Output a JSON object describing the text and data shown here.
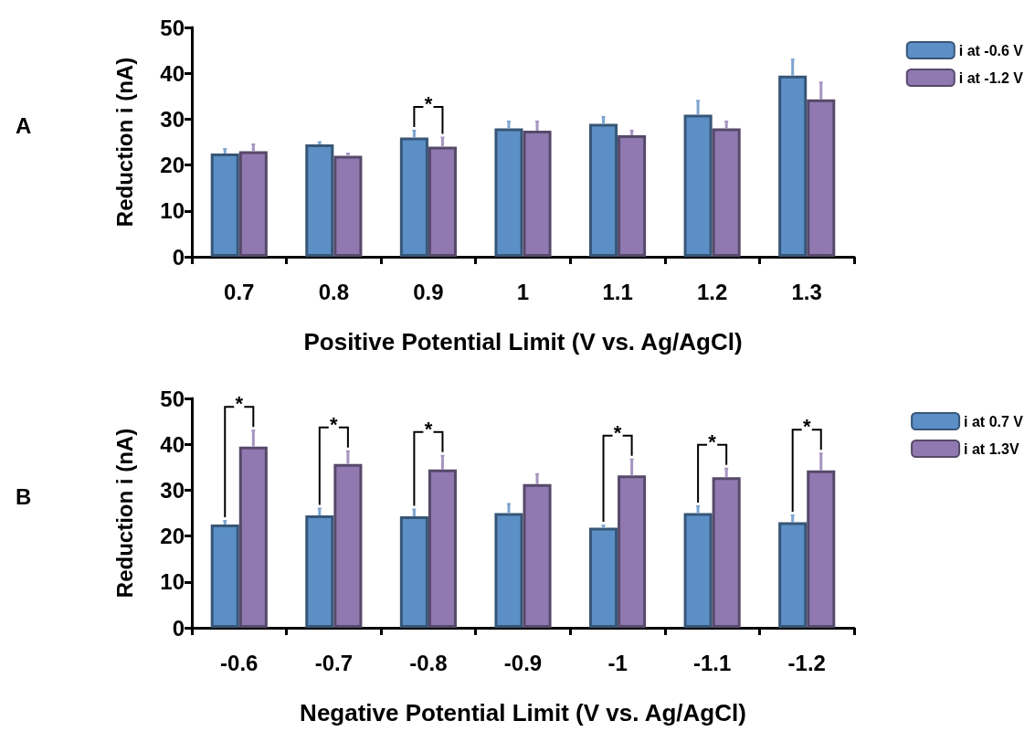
{
  "chart_data": [
    {
      "type": "bar",
      "title": "A",
      "xlabel": "Positive Potential Limit (V vs. Ag/AgCl)",
      "ylabel": "Reduction i (nA)",
      "categories": [
        "0.7",
        "0.8",
        "0.9",
        "1",
        "1.1",
        "1.2",
        "1.3"
      ],
      "series": [
        {
          "name": "i at -0.6 V",
          "color": "#5b8fc6",
          "values": [
            22.5,
            24.5,
            26,
            28,
            29,
            31,
            39.5
          ],
          "errors": [
            [
              22.5,
              23.5
            ],
            [
              24.5,
              25
            ],
            [
              26,
              27.5
            ],
            [
              28,
              29.5
            ],
            [
              29,
              30.5
            ],
            [
              31,
              34
            ],
            [
              39.5,
              43
            ]
          ]
        },
        {
          "name": "i at -1.2 V",
          "color": "#9079b0",
          "values": [
            23,
            22,
            24,
            27.5,
            26.5,
            28,
            34.3
          ],
          "errors": [
            [
              23,
              24.5
            ],
            [
              22,
              22.5
            ],
            [
              24,
              26
            ],
            [
              27.5,
              29.5
            ],
            [
              26.5,
              27.5
            ],
            [
              28,
              29.5
            ],
            [
              34.3,
              38
            ]
          ]
        }
      ],
      "annotations": [
        {
          "text": "*",
          "x": "0.9",
          "y": 26
        }
      ],
      "ylim": [
        0,
        50
      ],
      "yticks": [
        0,
        10,
        20,
        30,
        40,
        50
      ],
      "grid": false,
      "legend": "right"
    },
    {
      "type": "bar",
      "title": "B",
      "xlabel": "Negative Potential Limit (V vs. Ag/AgCl)",
      "ylabel": "Reduction i (nA)",
      "categories": [
        "-0.6",
        "-0.7",
        "-0.8",
        "-0.9",
        "-1",
        "-1.1",
        "-1.2"
      ],
      "series": [
        {
          "name": "i at 0.7 V",
          "color": "#5b8fc6",
          "values": [
            22.5,
            24.5,
            24.3,
            25,
            21.8,
            25,
            23
          ],
          "errors": [
            [
              22.5,
              23.3
            ],
            [
              24.5,
              26
            ],
            [
              24.3,
              25.8
            ],
            [
              25,
              27
            ],
            [
              21.8,
              22.3
            ],
            [
              25,
              26.5
            ],
            [
              23,
              24.5
            ]
          ]
        },
        {
          "name": "i at 1.3V",
          "color": "#9079b0",
          "values": [
            39.5,
            35.7,
            34.5,
            31.3,
            33.2,
            32.8,
            34.3
          ],
          "errors": [
            [
              39.5,
              43
            ],
            [
              35.7,
              38.5
            ],
            [
              34.5,
              37.5
            ],
            [
              31.3,
              33.5
            ],
            [
              33.2,
              36.7
            ],
            [
              32.8,
              34.7
            ],
            [
              34.3,
              38
            ]
          ]
        }
      ],
      "annotations": [
        {
          "text": "*",
          "x": "-0.6",
          "y": 39.5
        },
        {
          "text": "*",
          "x": "-0.7",
          "y": 35.7
        },
        {
          "text": "*",
          "x": "-0.8",
          "y": 34.5
        },
        {
          "text": "*",
          "x": "-1",
          "y": 33.2
        },
        {
          "text": "*",
          "x": "-1.1",
          "y": 32.8
        },
        {
          "text": "*",
          "x": "-1.2",
          "y": 34.3
        }
      ],
      "ylim": [
        0,
        50
      ],
      "yticks": [
        0,
        10,
        20,
        30,
        40,
        50
      ],
      "grid": false,
      "legend": "right"
    }
  ]
}
